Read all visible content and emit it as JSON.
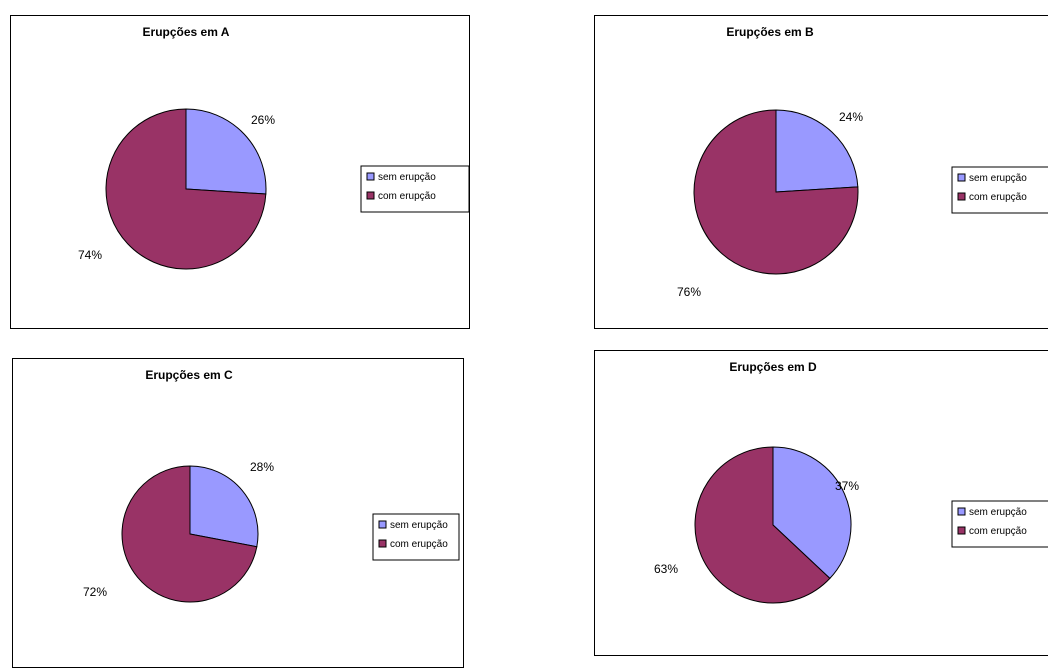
{
  "colors": {
    "sem": "#9999ff",
    "com": "#993366"
  },
  "chart_data": [
    {
      "type": "pie",
      "title": "Erupções em A",
      "labels": [
        "sem erupção",
        "com erupção"
      ],
      "values": [
        26,
        74
      ],
      "data_labels": [
        "26%",
        "74%"
      ],
      "legend": {
        "position": "right",
        "entries": [
          "sem erupção",
          "com erupção"
        ]
      }
    },
    {
      "type": "pie",
      "title": "Erupções em B",
      "labels": [
        "sem erupção",
        "com erupção"
      ],
      "values": [
        24,
        76
      ],
      "data_labels": [
        "24%",
        "76%"
      ],
      "legend": {
        "position": "right",
        "entries": [
          "sem erupção",
          "com erupção"
        ]
      }
    },
    {
      "type": "pie",
      "title": "Erupções em C",
      "labels": [
        "sem erupção",
        "com erupção"
      ],
      "values": [
        28,
        72
      ],
      "data_labels": [
        "28%",
        "72%"
      ],
      "legend": {
        "position": "right",
        "entries": [
          "sem erupção",
          "com erupção"
        ]
      }
    },
    {
      "type": "pie",
      "title": "Erupções em D",
      "labels": [
        "sem erupção",
        "com erupção"
      ],
      "values": [
        37,
        63
      ],
      "data_labels": [
        "37%",
        "63%"
      ],
      "legend": {
        "position": "right",
        "entries": [
          "sem erupção",
          "com erupção"
        ]
      }
    }
  ]
}
